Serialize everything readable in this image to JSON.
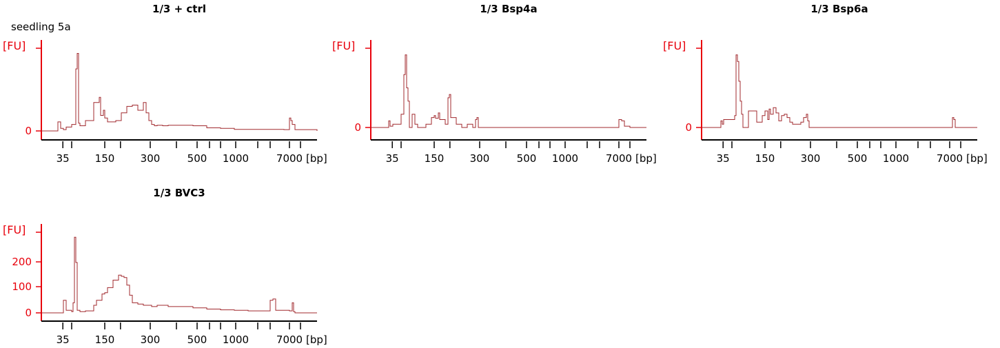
{
  "header": {
    "sample_label": "seedling 5a"
  },
  "colors": {
    "axis": "#e8000b",
    "trace": "#a0282d",
    "ticks": "#000000"
  },
  "chart_data": [
    {
      "type": "line",
      "title": "1/3 + ctrl",
      "ylabel": "[FU]",
      "xlabel": "[bp]",
      "x_scale": "categorical-ladder",
      "x_ticks_major": [
        "35",
        "150",
        "300",
        "500",
        "1000",
        "7000"
      ],
      "y_ticks": [
        0
      ],
      "ylim": [
        0,
        320
      ],
      "series": [
        {
          "x": [
            0,
            0.05,
            0.06,
            0.07,
            0.08,
            0.09,
            0.11,
            0.125,
            0.13,
            0.135,
            0.14,
            0.16,
            0.19,
            0.21,
            0.215,
            0.225,
            0.23,
            0.24,
            0.25,
            0.27,
            0.29,
            0.31,
            0.33,
            0.35,
            0.37,
            0.38,
            0.39,
            0.4,
            0.41,
            0.42,
            0.44,
            0.46,
            0.5,
            0.55,
            0.6,
            0.65,
            0.7,
            0.8,
            0.85,
            0.88,
            0.9,
            0.905,
            0.91,
            0.92,
            1
          ],
          "y": [
            0,
            0,
            35,
            10,
            5,
            15,
            25,
            240,
            300,
            30,
            20,
            40,
            110,
            130,
            60,
            80,
            50,
            35,
            35,
            40,
            70,
            95,
            100,
            80,
            110,
            70,
            40,
            25,
            20,
            22,
            20,
            22,
            22,
            20,
            12,
            10,
            6,
            6,
            6,
            5,
            50,
            40,
            25,
            5,
            0
          ]
        }
      ]
    },
    {
      "type": "line",
      "title": "1/3 Bsp4a",
      "ylabel": "[FU]",
      "xlabel": "[bp]",
      "x_scale": "categorical-ladder",
      "x_ticks_major": [
        "35",
        "150",
        "300",
        "500",
        "1000",
        "7000"
      ],
      "y_ticks": [
        0
      ],
      "ylim": [
        0,
        120
      ],
      "series": [
        {
          "x": [
            0,
            0.05,
            0.065,
            0.07,
            0.08,
            0.11,
            0.12,
            0.125,
            0.13,
            0.135,
            0.14,
            0.15,
            0.16,
            0.17,
            0.2,
            0.22,
            0.23,
            0.235,
            0.245,
            0.25,
            0.27,
            0.28,
            0.285,
            0.29,
            0.31,
            0.33,
            0.35,
            0.37,
            0.38,
            0.385,
            0.39,
            0.8,
            0.85,
            0.88,
            0.9,
            0.91,
            0.92,
            0.94,
            1
          ],
          "y": [
            0,
            0,
            10,
            2,
            5,
            20,
            80,
            110,
            60,
            40,
            0,
            20,
            5,
            0,
            5,
            15,
            18,
            14,
            22,
            12,
            5,
            45,
            50,
            15,
            5,
            0,
            5,
            0,
            12,
            15,
            0,
            0,
            0,
            0,
            12,
            10,
            2,
            0,
            0
          ]
        }
      ]
    },
    {
      "type": "line",
      "title": "1/3 Bsp6a",
      "ylabel": "[FU]",
      "xlabel": "[bp]",
      "x_scale": "categorical-ladder",
      "x_ticks_major": [
        "35",
        "150",
        "300",
        "500",
        "1000",
        "7000"
      ],
      "y_ticks": [
        0
      ],
      "ylim": [
        0,
        120
      ],
      "series": [
        {
          "x": [
            0,
            0.05,
            0.07,
            0.075,
            0.08,
            0.12,
            0.125,
            0.13,
            0.135,
            0.14,
            0.145,
            0.15,
            0.17,
            0.2,
            0.22,
            0.23,
            0.24,
            0.245,
            0.25,
            0.26,
            0.27,
            0.28,
            0.29,
            0.3,
            0.31,
            0.32,
            0.33,
            0.36,
            0.37,
            0.38,
            0.385,
            0.39,
            0.4,
            0.85,
            0.9,
            0.91,
            0.915,
            0.92,
            1
          ],
          "y": [
            0,
            0,
            10,
            5,
            12,
            18,
            110,
            100,
            70,
            40,
            20,
            0,
            25,
            8,
            18,
            25,
            12,
            28,
            20,
            30,
            22,
            10,
            18,
            20,
            15,
            8,
            5,
            8,
            15,
            20,
            10,
            0,
            0,
            0,
            0,
            15,
            12,
            0,
            0
          ]
        }
      ]
    },
    {
      "type": "line",
      "title": "1/3 BVC3",
      "ylabel": "[FU]",
      "xlabel": "[bp]",
      "x_scale": "categorical-ladder",
      "x_ticks_major": [
        "35",
        "150",
        "300",
        "500",
        "1000",
        "7000"
      ],
      "y_ticks": [
        0,
        100,
        200
      ],
      "ylim": [
        0,
        320
      ],
      "series": [
        {
          "x": [
            0,
            0.07,
            0.08,
            0.09,
            0.11,
            0.115,
            0.12,
            0.125,
            0.13,
            0.14,
            0.16,
            0.19,
            0.2,
            0.22,
            0.23,
            0.24,
            0.26,
            0.28,
            0.29,
            0.3,
            0.31,
            0.32,
            0.33,
            0.35,
            0.37,
            0.39,
            0.4,
            0.42,
            0.46,
            0.5,
            0.55,
            0.6,
            0.65,
            0.7,
            0.75,
            0.78,
            0.82,
            0.83,
            0.84,
            0.85,
            0.9,
            0.91,
            0.915,
            0.92,
            1
          ],
          "y": [
            0,
            0,
            50,
            10,
            5,
            40,
            300,
            200,
            10,
            5,
            8,
            30,
            50,
            75,
            80,
            100,
            130,
            150,
            145,
            140,
            110,
            70,
            40,
            35,
            30,
            30,
            25,
            30,
            25,
            25,
            20,
            15,
            12,
            10,
            8,
            8,
            8,
            50,
            55,
            10,
            8,
            40,
            5,
            0,
            0
          ]
        }
      ]
    }
  ]
}
